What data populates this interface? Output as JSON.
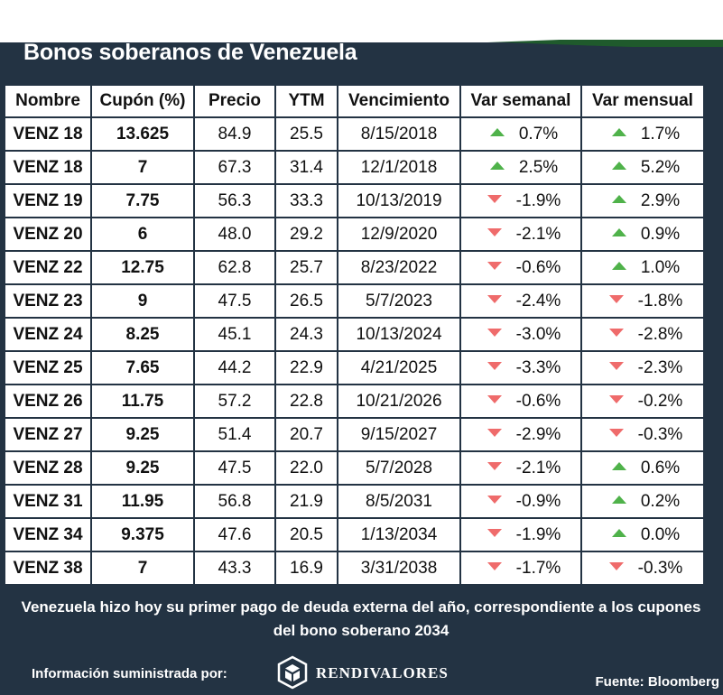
{
  "title": "Bonos soberanos de Venezuela",
  "columns": [
    "Nombre",
    "Cupón (%)",
    "Precio",
    "YTM",
    "Vencimiento",
    "Var semanal",
    "Var mensual"
  ],
  "rows": [
    {
      "name": "VENZ 18",
      "coupon": "13.625",
      "price": "84.9",
      "ytm": "25.5",
      "maturity": "8/15/2018",
      "weekly": "0.7%",
      "weekly_dir": "up",
      "monthly": "1.7%",
      "monthly_dir": "up"
    },
    {
      "name": "VENZ 18",
      "coupon": "7",
      "price": "67.3",
      "ytm": "31.4",
      "maturity": "12/1/2018",
      "weekly": "2.5%",
      "weekly_dir": "up",
      "monthly": "5.2%",
      "monthly_dir": "up"
    },
    {
      "name": "VENZ 19",
      "coupon": "7.75",
      "price": "56.3",
      "ytm": "33.3",
      "maturity": "10/13/2019",
      "weekly": "-1.9%",
      "weekly_dir": "down",
      "monthly": "2.9%",
      "monthly_dir": "up"
    },
    {
      "name": "VENZ 20",
      "coupon": "6",
      "price": "48.0",
      "ytm": "29.2",
      "maturity": "12/9/2020",
      "weekly": "-2.1%",
      "weekly_dir": "down",
      "monthly": "0.9%",
      "monthly_dir": "up"
    },
    {
      "name": "VENZ 22",
      "coupon": "12.75",
      "price": "62.8",
      "ytm": "25.7",
      "maturity": "8/23/2022",
      "weekly": "-0.6%",
      "weekly_dir": "down",
      "monthly": "1.0%",
      "monthly_dir": "up"
    },
    {
      "name": "VENZ 23",
      "coupon": "9",
      "price": "47.5",
      "ytm": "26.5",
      "maturity": "5/7/2023",
      "weekly": "-2.4%",
      "weekly_dir": "down",
      "monthly": "-1.8%",
      "monthly_dir": "down"
    },
    {
      "name": "VENZ 24",
      "coupon": "8.25",
      "price": "45.1",
      "ytm": "24.3",
      "maturity": "10/13/2024",
      "weekly": "-3.0%",
      "weekly_dir": "down",
      "monthly": "-2.8%",
      "monthly_dir": "down"
    },
    {
      "name": "VENZ 25",
      "coupon": "7.65",
      "price": "44.2",
      "ytm": "22.9",
      "maturity": "4/21/2025",
      "weekly": "-3.3%",
      "weekly_dir": "down",
      "monthly": "-2.3%",
      "monthly_dir": "down"
    },
    {
      "name": "VENZ 26",
      "coupon": "11.75",
      "price": "57.2",
      "ytm": "22.8",
      "maturity": "10/21/2026",
      "weekly": "-0.6%",
      "weekly_dir": "down",
      "monthly": "-0.2%",
      "monthly_dir": "down"
    },
    {
      "name": "VENZ 27",
      "coupon": "9.25",
      "price": "51.4",
      "ytm": "20.7",
      "maturity": "9/15/2027",
      "weekly": "-2.9%",
      "weekly_dir": "down",
      "monthly": "-0.3%",
      "monthly_dir": "down"
    },
    {
      "name": "VENZ 28",
      "coupon": "9.25",
      "price": "47.5",
      "ytm": "22.0",
      "maturity": "5/7/2028",
      "weekly": "-2.1%",
      "weekly_dir": "down",
      "monthly": "0.6%",
      "monthly_dir": "up"
    },
    {
      "name": "VENZ 31",
      "coupon": "11.95",
      "price": "56.8",
      "ytm": "21.9",
      "maturity": "8/5/2031",
      "weekly": "-0.9%",
      "weekly_dir": "down",
      "monthly": "0.2%",
      "monthly_dir": "up"
    },
    {
      "name": "VENZ 34",
      "coupon": "9.375",
      "price": "47.6",
      "ytm": "20.5",
      "maturity": "1/13/2034",
      "weekly": "-1.9%",
      "weekly_dir": "down",
      "monthly": "0.0%",
      "monthly_dir": "up"
    },
    {
      "name": "VENZ 38",
      "coupon": "7",
      "price": "43.3",
      "ytm": "16.9",
      "maturity": "3/31/2038",
      "weekly": "-1.7%",
      "weekly_dir": "down",
      "monthly": "-0.3%",
      "monthly_dir": "down"
    }
  ],
  "note": "Venezuela hizo hoy su primer pago de deuda externa del año, correspondiente a los cupones del bono soberano 2034",
  "footer": {
    "provided_by": "Información suministrada por:",
    "logo_text": "RENDIVALORES",
    "logo_icon": "cube-logo-icon",
    "source": "Fuente: Bloomberg"
  },
  "colors": {
    "background": "#233343",
    "up_arrow": "#4fb24a",
    "down_arrow": "#ef6b6b",
    "accent_green": "#1f5a2c"
  }
}
